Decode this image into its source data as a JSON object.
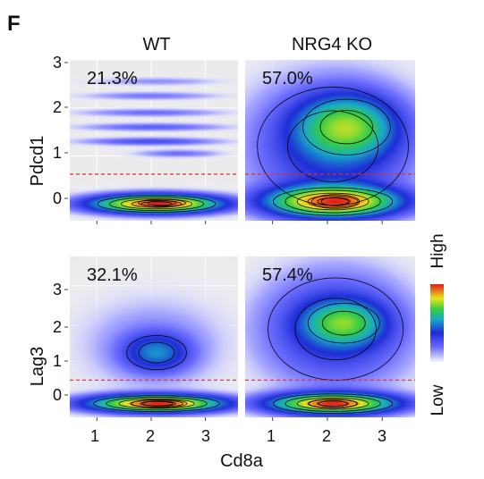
{
  "figure": {
    "panel_letter": "F",
    "xlabel": "Cd8a",
    "legend": {
      "high_label": "High",
      "low_label": "Low"
    }
  },
  "colors": {
    "panel_bg": "#ebebeb",
    "threshold_line": "#d9302c",
    "contour": "#000000",
    "colorscale": [
      "#ffffff",
      "#5a5aff",
      "#1f2bd6",
      "#19a8c9",
      "#33cc44",
      "#e5e51a",
      "#ff7a1a",
      "#e41a1c"
    ]
  },
  "chart_data": [
    {
      "type": "heatmap",
      "title": "WT",
      "ylabel": "Pdcd1",
      "percentage": "21.3%",
      "xlim": [
        0.5,
        3.6
      ],
      "ylim": [
        -0.35,
        3.0
      ],
      "xticks": [
        1,
        2,
        3
      ],
      "yticks": [
        0,
        1,
        2,
        3
      ],
      "threshold_y": 0.62,
      "density_blobs": [
        {
          "x": 2.1,
          "y": 0.0,
          "sx": 0.75,
          "sy": 0.12,
          "w": 1.0
        },
        {
          "x": 2.2,
          "y": 0.02,
          "sx": 0.3,
          "sy": 0.05,
          "w": 0.35
        },
        {
          "x": 2.0,
          "y": 1.3,
          "sx": 0.8,
          "sy": 0.05,
          "w": 0.14
        },
        {
          "x": 2.05,
          "y": 1.6,
          "sx": 0.85,
          "sy": 0.05,
          "w": 0.11
        },
        {
          "x": 2.0,
          "y": 1.9,
          "sx": 0.85,
          "sy": 0.05,
          "w": 0.09
        },
        {
          "x": 2.0,
          "y": 2.25,
          "sx": 0.8,
          "sy": 0.05,
          "w": 0.08
        },
        {
          "x": 2.1,
          "y": 2.55,
          "sx": 0.75,
          "sy": 0.05,
          "w": 0.06
        },
        {
          "x": 2.5,
          "y": 1.05,
          "sx": 0.5,
          "sy": 0.05,
          "w": 0.09
        }
      ]
    },
    {
      "type": "heatmap",
      "title": "NRG4 KO",
      "ylabel": "",
      "percentage": "57.0%",
      "xlim": [
        0.5,
        3.6
      ],
      "ylim": [
        -0.35,
        3.0
      ],
      "xticks": [
        1,
        2,
        3
      ],
      "yticks": [
        0,
        1,
        2,
        3
      ],
      "threshold_y": 0.62,
      "density_blobs": [
        {
          "x": 2.1,
          "y": 0.05,
          "sx": 0.75,
          "sy": 0.2,
          "w": 0.75
        },
        {
          "x": 2.15,
          "y": 0.05,
          "sx": 0.3,
          "sy": 0.1,
          "w": 0.25
        },
        {
          "x": 2.35,
          "y": 1.6,
          "sx": 0.55,
          "sy": 0.4,
          "w": 0.42
        },
        {
          "x": 2.1,
          "y": 1.2,
          "sx": 0.95,
          "sy": 0.85,
          "w": 0.18
        }
      ]
    },
    {
      "type": "heatmap",
      "title": "",
      "ylabel": "Lag3",
      "percentage": "32.1%",
      "xlim": [
        0.5,
        3.6
      ],
      "ylim": [
        -0.35,
        3.75
      ],
      "xticks": [
        1,
        2,
        3
      ],
      "yticks": [
        0,
        1,
        2,
        3
      ],
      "threshold_y": 0.6,
      "density_blobs": [
        {
          "x": 2.1,
          "y": 0.0,
          "sx": 0.8,
          "sy": 0.14,
          "w": 1.0
        },
        {
          "x": 2.15,
          "y": 0.0,
          "sx": 0.35,
          "sy": 0.07,
          "w": 0.45
        },
        {
          "x": 2.1,
          "y": 1.3,
          "sx": 0.38,
          "sy": 0.3,
          "w": 0.3
        },
        {
          "x": 2.05,
          "y": 1.5,
          "sx": 0.85,
          "sy": 0.75,
          "w": 0.08
        }
      ]
    },
    {
      "type": "heatmap",
      "title": "",
      "ylabel": "",
      "percentage": "57.4%",
      "xlim": [
        0.5,
        3.6
      ],
      "ylim": [
        -0.35,
        3.75
      ],
      "xticks": [
        1,
        2,
        3
      ],
      "yticks": [
        0,
        1,
        2,
        3
      ],
      "threshold_y": 0.6,
      "density_blobs": [
        {
          "x": 2.1,
          "y": 0.0,
          "sx": 0.75,
          "sy": 0.17,
          "w": 0.95
        },
        {
          "x": 2.1,
          "y": 0.0,
          "sx": 0.3,
          "sy": 0.08,
          "w": 0.5
        },
        {
          "x": 2.3,
          "y": 2.05,
          "sx": 0.45,
          "sy": 0.35,
          "w": 0.5
        },
        {
          "x": 2.15,
          "y": 1.9,
          "sx": 0.85,
          "sy": 0.9,
          "w": 0.25
        }
      ]
    }
  ]
}
